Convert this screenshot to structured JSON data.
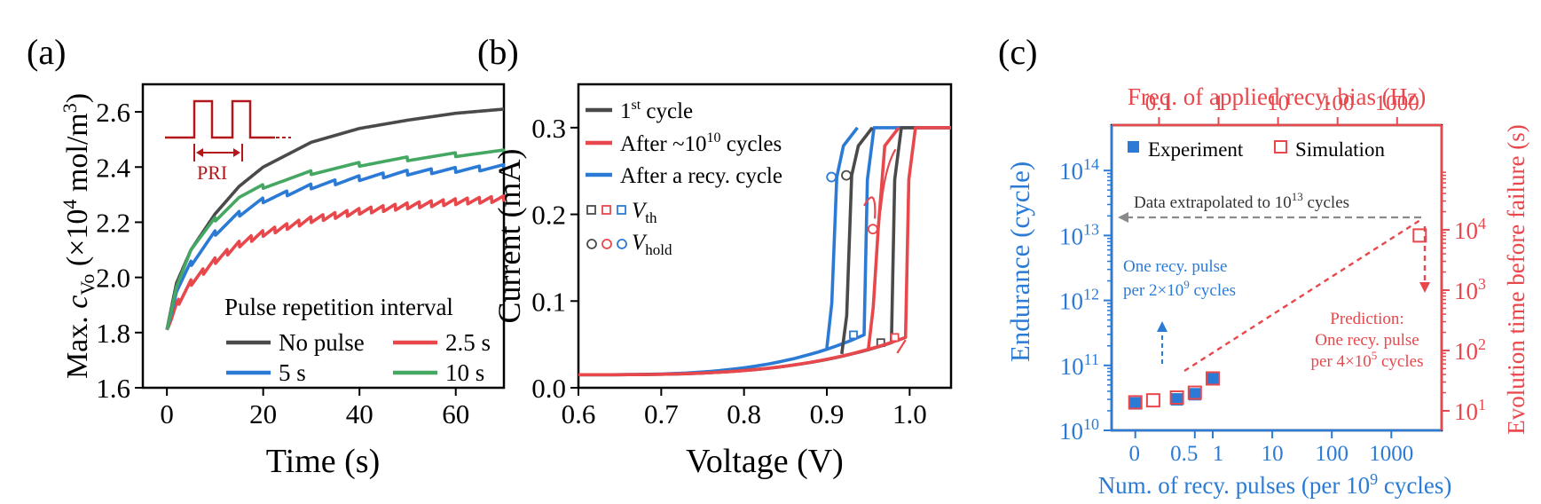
{
  "colors": {
    "black": "#4a4a4a",
    "red": "#e8474c",
    "blue": "#2b7bd6",
    "green": "#45a862",
    "darkred": "#b2181b",
    "gray": "#8a8a8a"
  },
  "chart_data": [
    {
      "panel_label": "(a)",
      "type": "line",
      "xlabel": "Time (s)",
      "ylabel_prefix": "Max. ",
      "ylabel_var": "c",
      "ylabel_sub": "Vo",
      "ylabel_unit_pre": " (×10",
      "ylabel_unit_exp": "4",
      "ylabel_unit_post": " mol/m",
      "ylabel_unit_exp2": "3",
      "ylabel_unit_end": ")",
      "xlim": [
        -5,
        70
      ],
      "ylim": [
        1.6,
        2.7
      ],
      "xticks": [
        0,
        20,
        40,
        60
      ],
      "yticks": [
        1.6,
        1.8,
        2.0,
        2.2,
        2.4,
        2.6
      ],
      "xtick_labels": [
        "0",
        "20",
        "40",
        "60"
      ],
      "ytick_labels": [
        "1.6",
        "1.8",
        "2.0",
        "2.2",
        "2.4",
        "2.6"
      ],
      "legend_title": "Pulse repetition interval",
      "inset_label": "PRI",
      "series": [
        {
          "name": "No pulse",
          "color_key": "black",
          "pri": 0,
          "x": [
            0,
            2,
            5,
            10,
            15,
            20,
            30,
            40,
            50,
            60,
            70
          ],
          "y": [
            1.81,
            1.98,
            2.1,
            2.23,
            2.33,
            2.4,
            2.49,
            2.54,
            2.57,
            2.595,
            2.61
          ]
        },
        {
          "name": "2.5 s",
          "color_key": "red",
          "pri": 2.5,
          "x": [
            0,
            2,
            5,
            10,
            15,
            20,
            30,
            40,
            50,
            60,
            70
          ],
          "y": [
            1.81,
            1.9,
            1.98,
            2.06,
            2.12,
            2.16,
            2.21,
            2.24,
            2.26,
            2.275,
            2.285
          ]
        },
        {
          "name": "5 s",
          "color_key": "blue",
          "pri": 5,
          "x": [
            0,
            2,
            5,
            10,
            15,
            20,
            30,
            40,
            50,
            60,
            70
          ],
          "y": [
            1.81,
            1.95,
            2.05,
            2.16,
            2.23,
            2.28,
            2.33,
            2.36,
            2.38,
            2.39,
            2.4
          ]
        },
        {
          "name": "10 s",
          "color_key": "green",
          "pri": 10,
          "x": [
            0,
            2,
            5,
            10,
            15,
            20,
            30,
            40,
            50,
            60,
            70
          ],
          "y": [
            1.81,
            1.97,
            2.1,
            2.21,
            2.29,
            2.33,
            2.38,
            2.41,
            2.43,
            2.445,
            2.455
          ]
        }
      ]
    },
    {
      "panel_label": "(b)",
      "type": "line",
      "xlabel": "Voltage (V)",
      "ylabel": "Current (mA)",
      "xlim": [
        0.6,
        1.05
      ],
      "ylim": [
        0.0,
        0.35
      ],
      "xticks": [
        0.6,
        0.7,
        0.8,
        0.9,
        1.0
      ],
      "yticks": [
        0.0,
        0.1,
        0.2,
        0.3
      ],
      "xtick_labels": [
        "0.6",
        "0.7",
        "0.8",
        "0.9",
        "1.0"
      ],
      "ytick_labels": [
        "0.0",
        "0.1",
        "0.2",
        "0.3"
      ],
      "legend": [
        {
          "pre": "1",
          "sup": "st",
          "post": " cycle",
          "color_key": "black"
        },
        {
          "pre": "After ~10",
          "sup": "10",
          "post": " cycles",
          "color_key": "red"
        },
        {
          "pre": "After a recy. cycle",
          "sup": "",
          "post": "",
          "color_key": "blue"
        }
      ],
      "marker_legend": [
        {
          "symbol": "square",
          "var": "V",
          "sub": "th"
        },
        {
          "symbol": "circle",
          "var": "V",
          "sub": "hold"
        }
      ],
      "series": [
        {
          "name": "1st cycle",
          "color_key": "black",
          "vth": 0.978,
          "vhold": 0.93,
          "ith": 0.052,
          "ihold": 0.245,
          "sat": 0.3
        },
        {
          "name": "After ~1e10 cycles",
          "color_key": "red",
          "vth": 0.995,
          "vhold": 0.962,
          "ith": 0.058,
          "ihold": 0.183,
          "sat": 0.3
        },
        {
          "name": "After a recy. cycle",
          "color_key": "blue",
          "vth": 0.945,
          "vhold": 0.912,
          "ith": 0.061,
          "ihold": 0.243,
          "sat": 0.3
        }
      ]
    },
    {
      "panel_label": "(c)",
      "type": "scatter",
      "xlabel": "Num. of recy. pulses (per 10",
      "xlabel_exp": "9",
      "xlabel_end": " cycles)",
      "ylabel": "Endurance (cycle)",
      "top_xlabel": "Freq. of applied recy. bias (Hz)",
      "right_ylabel": "Evolution time before failure (s)",
      "x_scale": "log",
      "y_scale": "log",
      "xlim": [
        0.02,
        7000
      ],
      "ylim": [
        10000000000.0,
        500000000000000.0
      ],
      "xtick_labels": [
        "0",
        "0.5",
        "1",
        "10",
        "100",
        "1000"
      ],
      "top_xtick_labels": [
        "0.1",
        "1",
        "10",
        "100",
        "1000"
      ],
      "y_base": "10",
      "ytick_exps": [
        "10",
        "11",
        "12",
        "13",
        "14"
      ],
      "right_ytick_exps": [
        "1",
        "2",
        "3",
        "4"
      ],
      "legend": [
        {
          "name": "Experiment",
          "color_key": "blue",
          "marker": "filled-square"
        },
        {
          "name": "Simulation",
          "color_key": "red",
          "marker": "open-square"
        }
      ],
      "series": [
        {
          "name": "Experiment",
          "x": [
            0.05,
            0.25,
            0.5,
            1.0
          ],
          "y": [
            26000000000.0,
            30000000000.0,
            36000000000.0,
            61000000000.0
          ]
        },
        {
          "name": "Simulation",
          "x": [
            0.05,
            0.1,
            0.25,
            0.5,
            1.0,
            3000
          ],
          "y": [
            27000000000.0,
            29000000000.0,
            32000000000.0,
            38000000000.0,
            63000000000.0,
            10000000000000.0
          ]
        }
      ],
      "annotations": {
        "extrapolation_pre": "Data extrapolated to 10",
        "extrapolation_exp": "13",
        "extrapolation_post": " cycles",
        "exp_note_line1": "One recy. pulse",
        "exp_note_line2_pre": "per 2×10",
        "exp_note_line2_exp": "9",
        "exp_note_line2_post": " cycles",
        "pred_line1": "Prediction:",
        "pred_line2": "One recy. pulse",
        "pred_line3_pre": "per 4×10",
        "pred_line3_exp": "5",
        "pred_line3_post": " cycles"
      }
    }
  ]
}
